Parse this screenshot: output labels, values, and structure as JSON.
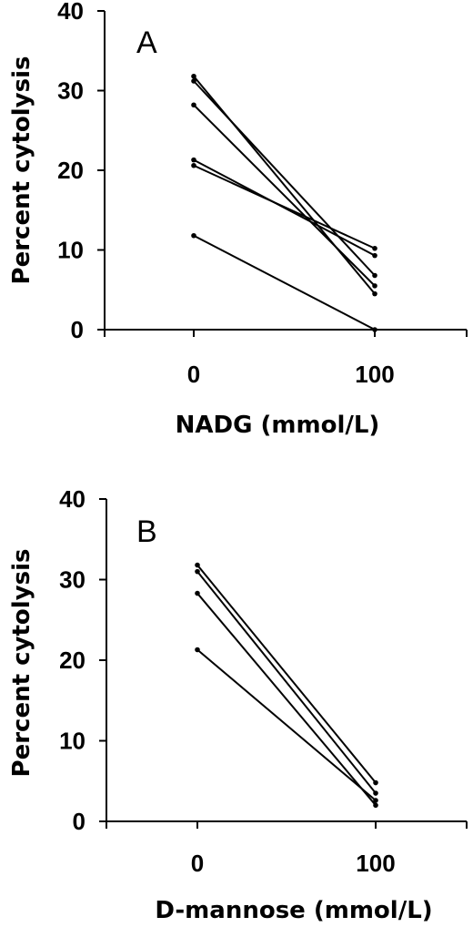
{
  "chart_data": [
    {
      "type": "line",
      "panel_label": "A",
      "xlabel": "NADG (mmol/L)",
      "ylabel": "Percent cytolysis",
      "categories": [
        "0",
        "100"
      ],
      "ylim": [
        0,
        40
      ],
      "yticks": [
        "0",
        "10",
        "20",
        "30",
        "40"
      ],
      "line_color": "#000000",
      "series": [
        {
          "values": [
            31.8,
            4.5
          ]
        },
        {
          "values": [
            31.2,
            6.8
          ]
        },
        {
          "values": [
            28.2,
            5.5
          ]
        },
        {
          "values": [
            21.3,
            9.3
          ]
        },
        {
          "values": [
            20.6,
            10.2
          ]
        },
        {
          "values": [
            11.8,
            0.0
          ]
        }
      ]
    },
    {
      "type": "line",
      "panel_label": "B",
      "xlabel": "D-mannose (mmol/L)",
      "ylabel": "Percent cytolysis",
      "categories": [
        "0",
        "100"
      ],
      "ylim": [
        0,
        40
      ],
      "yticks": [
        "0",
        "10",
        "20",
        "30",
        "40"
      ],
      "line_color": "#000000",
      "series": [
        {
          "values": [
            31.8,
            4.8
          ]
        },
        {
          "values": [
            31.0,
            3.5
          ]
        },
        {
          "values": [
            28.3,
            2.0
          ]
        },
        {
          "values": [
            21.3,
            2.6
          ]
        }
      ]
    }
  ]
}
